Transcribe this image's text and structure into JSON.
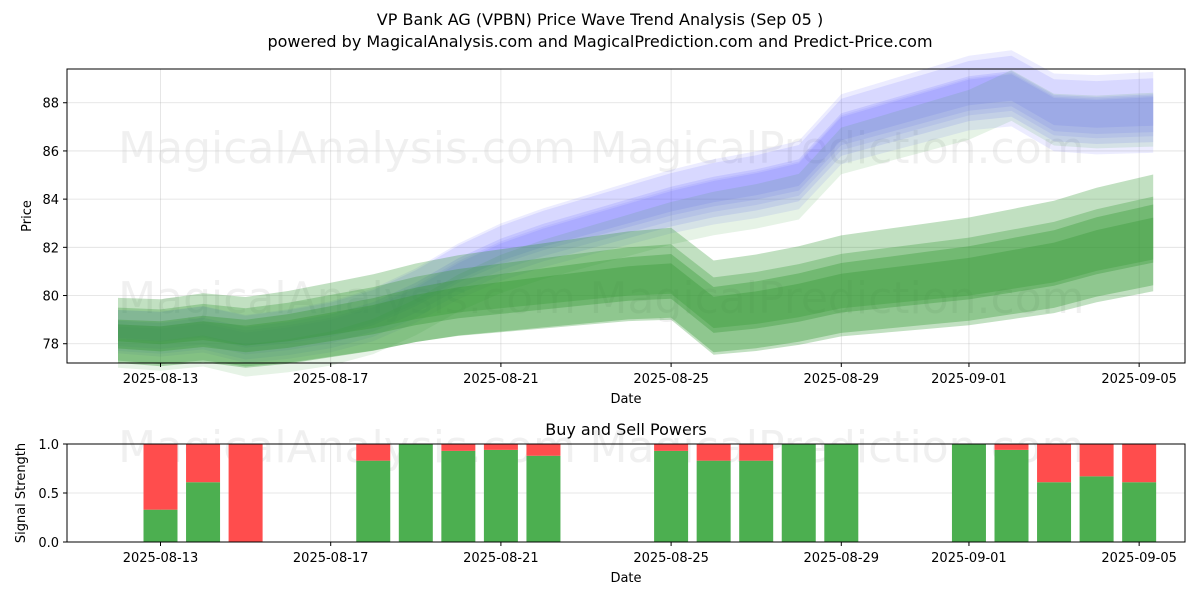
{
  "title_line1": "VP Bank AG (VPBN) Price Wave Trend Analysis (Sep 05 )",
  "title_line2": "powered by MagicalAnalysis.com and MagicalPrediction.com and Predict-Price.com",
  "watermarks": [
    "MagicalAnalysis.com",
    "MagicalPrediction.com"
  ],
  "colors": {
    "blue_band": "#6666ff",
    "green_band": "#339933",
    "buy": "#4caf50",
    "sell": "#ff4d4d"
  },
  "chart_data": [
    {
      "type": "area",
      "title": "",
      "xlabel": "Date",
      "ylabel": "Price",
      "x_ticks": [
        "2025-08-13",
        "2025-08-17",
        "2025-08-21",
        "2025-08-25",
        "2025-08-29",
        "2025-09-01",
        "2025-09-05"
      ],
      "y_ticks": [
        78,
        80,
        82,
        84,
        86,
        88
      ],
      "ylim": [
        77.2,
        89.4
      ],
      "xlim": [
        "2025-08-11",
        "2025-09-06"
      ],
      "grid": true,
      "series": [
        {
          "color": "blue",
          "x": [
            "2025-08-12",
            "2025-08-13",
            "2025-08-14",
            "2025-08-15",
            "2025-08-16",
            "2025-08-17",
            "2025-08-18",
            "2025-08-19",
            "2025-08-20",
            "2025-08-21",
            "2025-08-22",
            "2025-08-23",
            "2025-08-24",
            "2025-08-25",
            "2025-08-26",
            "2025-08-27",
            "2025-08-28",
            "2025-08-29",
            "2025-08-30",
            "2025-08-31",
            "2025-09-01",
            "2025-09-02",
            "2025-09-03",
            "2025-09-04",
            "2025-09-05"
          ],
          "values": [
            78.5,
            78.4,
            78.6,
            78.2,
            78.4,
            78.7,
            79.2,
            80.0,
            81.0,
            81.8,
            82.4,
            82.9,
            83.4,
            83.9,
            84.3,
            84.6,
            85.0,
            86.9,
            87.4,
            87.9,
            88.4,
            88.6,
            87.6,
            87.5,
            87.6
          ]
        },
        {
          "color": "green",
          "x": [
            "2025-08-12",
            "2025-08-13",
            "2025-08-14",
            "2025-08-15",
            "2025-08-16",
            "2025-08-17",
            "2025-08-18",
            "2025-08-19",
            "2025-08-20",
            "2025-08-21",
            "2025-08-22",
            "2025-08-23",
            "2025-08-24",
            "2025-08-25",
            "2025-08-26",
            "2025-08-27",
            "2025-08-28",
            "2025-08-29",
            "2025-08-30",
            "2025-08-31",
            "2025-09-01",
            "2025-09-02",
            "2025-09-03",
            "2025-09-04",
            "2025-09-05"
          ],
          "values": [
            78.4,
            78.3,
            78.5,
            78.3,
            78.5,
            78.8,
            79.1,
            79.5,
            79.8,
            80.0,
            80.2,
            80.4,
            80.6,
            80.7,
            79.3,
            79.5,
            79.8,
            80.2,
            80.4,
            80.6,
            80.8,
            81.1,
            81.4,
            81.9,
            82.4
          ]
        }
      ]
    },
    {
      "type": "bar",
      "title": "Buy and Sell Powers",
      "xlabel": "Date",
      "ylabel": "Signal Strength",
      "ylim": [
        0,
        1
      ],
      "y_ticks": [
        "0.0",
        "0.5",
        "1.0"
      ],
      "x_ticks": [
        "2025-08-13",
        "2025-08-17",
        "2025-08-21",
        "2025-08-25",
        "2025-08-29",
        "2025-09-01",
        "2025-09-05"
      ],
      "grid": true,
      "categories": [
        "2025-08-13",
        "2025-08-14",
        "2025-08-15",
        "2025-08-18",
        "2025-08-19",
        "2025-08-20",
        "2025-08-21",
        "2025-08-22",
        "2025-08-25",
        "2025-08-26",
        "2025-08-27",
        "2025-08-28",
        "2025-08-29",
        "2025-09-01",
        "2025-09-02",
        "2025-09-03",
        "2025-09-04",
        "2025-09-05"
      ],
      "series": [
        {
          "color": "green",
          "values": [
            0.33,
            0.61,
            0.0,
            0.83,
            1.0,
            0.93,
            0.94,
            0.88,
            0.93,
            0.83,
            0.83,
            1.0,
            1.0,
            1.0,
            0.94,
            0.61,
            0.67,
            0.61
          ]
        },
        {
          "color": "red",
          "values": [
            0.67,
            0.39,
            1.0,
            0.17,
            0.0,
            0.07,
            0.06,
            0.12,
            0.07,
            0.17,
            0.17,
            0.0,
            0.0,
            0.0,
            0.06,
            0.39,
            0.33,
            0.39
          ]
        }
      ]
    }
  ]
}
